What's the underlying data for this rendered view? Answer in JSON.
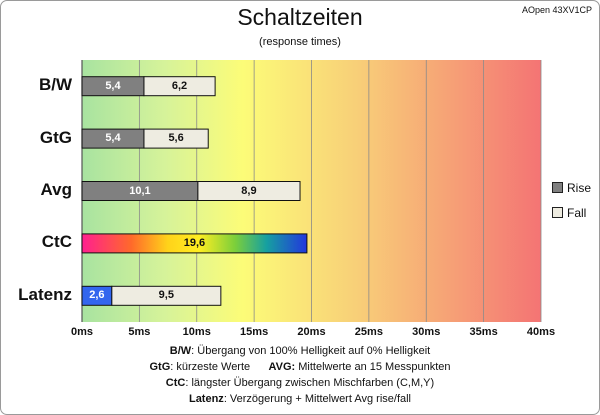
{
  "chart_data": {
    "type": "bar",
    "orientation": "horizontal",
    "stacked": true,
    "title": "Schaltzeiten",
    "subtitle": "(response times)",
    "model": "AOpen 43XV1CP",
    "categories": [
      "B/W",
      "GtG",
      "Avg",
      "CtC",
      "Latenz"
    ],
    "series": [
      {
        "name": "Rise",
        "color": "#808080",
        "values": [
          5.4,
          5.4,
          10.1,
          null,
          2.6
        ]
      },
      {
        "name": "Fall",
        "color": "#eeece1",
        "values": [
          6.2,
          5.6,
          8.9,
          null,
          9.5
        ]
      }
    ],
    "ctc": {
      "value": 19.6,
      "label": "19,6",
      "style": "rainbow-gradient"
    },
    "bar_labels": {
      "rise": [
        "5,4",
        "5,4",
        "10,1",
        "",
        "2,6"
      ],
      "fall": [
        "6,2",
        "5,6",
        "8,9",
        "",
        "9,5"
      ]
    },
    "latenz_rise_color": "#3366ee",
    "x_range": [
      0,
      40
    ],
    "x_ticks": [
      0,
      5,
      10,
      15,
      20,
      25,
      30,
      35,
      40
    ],
    "x_tick_labels": [
      "0ms",
      "5ms",
      "10ms",
      "15ms",
      "20ms",
      "25ms",
      "30ms",
      "35ms",
      "40ms"
    ],
    "grid": true,
    "background": "green-yellow-red-gradient",
    "legend": {
      "position": "right",
      "entries": [
        {
          "name": "Rise",
          "color": "#808080"
        },
        {
          "name": "Fall",
          "color": "#eeece1"
        }
      ]
    }
  },
  "footnotes": {
    "line1": {
      "key": "B/W",
      "text": ": Übergang von 100% Helligkeit auf 0% Helligkeit"
    },
    "line2": {
      "key1": "GtG",
      "text1": ": kürzeste Werte",
      "key2": "AVG:",
      "text2": " Mittelwerte an 15 Messpunkten"
    },
    "line3": {
      "key": "CtC",
      "text": ": längster Übergang zwischen Mischfarben (C,M,Y)"
    },
    "line4": {
      "key": "Latenz",
      "text": ": Verzögerung + Mittelwert Avg rise/fall"
    }
  }
}
